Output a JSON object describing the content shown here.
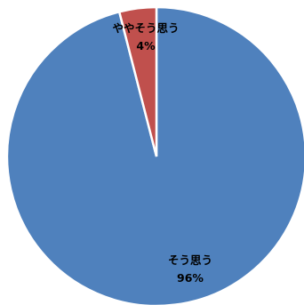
{
  "chart_data": {
    "type": "pie",
    "categories": [
      "そう思う",
      "ややそう思う"
    ],
    "values": [
      96,
      4
    ],
    "value_labels": [
      "96%",
      "4%"
    ],
    "colors": [
      "#4f81bd",
      "#c0504d"
    ],
    "slice_edge_color": "#ffffff",
    "start": "12 o'clock, clockwise, smaller slice ending at top",
    "legend": "none",
    "title": ""
  }
}
